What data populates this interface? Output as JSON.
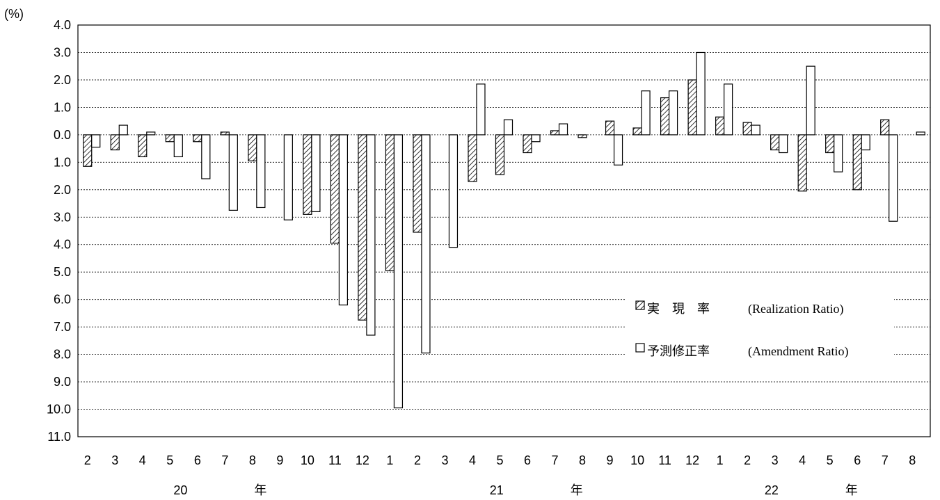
{
  "chart_data": {
    "type": "bar",
    "unit_label": "(%)",
    "ylim": [
      -11.0,
      4.0
    ],
    "y_ticks": [
      {
        "value": 4,
        "label": "4.0"
      },
      {
        "value": 3,
        "label": "3.0"
      },
      {
        "value": 2,
        "label": "2.0"
      },
      {
        "value": 1,
        "label": "1.0"
      },
      {
        "value": 0,
        "label": "0.0"
      },
      {
        "value": -1,
        "label": "1.0"
      },
      {
        "value": -2,
        "label": "2.0"
      },
      {
        "value": -3,
        "label": "3.0"
      },
      {
        "value": -4,
        "label": "4.0"
      },
      {
        "value": -5,
        "label": "5.0"
      },
      {
        "value": -6,
        "label": "6.0"
      },
      {
        "value": -7,
        "label": "7.0"
      },
      {
        "value": -8,
        "label": "8.0"
      },
      {
        "value": -9,
        "label": "9.0"
      },
      {
        "value": -10,
        "label": "10.0"
      },
      {
        "value": -11,
        "label": "11.0"
      }
    ],
    "grid": true,
    "categories": [
      "2",
      "3",
      "4",
      "5",
      "6",
      "7",
      "8",
      "9",
      "10",
      "11",
      "12",
      "1",
      "2",
      "3",
      "4",
      "5",
      "6",
      "7",
      "8",
      "9",
      "10",
      "11",
      "12",
      "1",
      "2",
      "3",
      "4",
      "5",
      "6",
      "7",
      "8"
    ],
    "year_labels": [
      {
        "year": "20",
        "suffix": "年",
        "start_index": 0,
        "end_index": 10
      },
      {
        "year": "21",
        "suffix": "年",
        "start_index": 11,
        "end_index": 22
      },
      {
        "year": "22",
        "suffix": "年",
        "start_index": 23,
        "end_index": 30
      }
    ],
    "series": [
      {
        "name_ja": "実　現　率",
        "name_en": "(Realization Ratio)",
        "style": "hatched",
        "values": [
          -1.15,
          -0.55,
          -0.8,
          -0.25,
          -0.25,
          0.1,
          -0.95,
          null,
          -2.9,
          -3.95,
          -6.75,
          -4.95,
          -3.55,
          null,
          -1.7,
          -1.45,
          -0.65,
          0.15,
          -0.1,
          0.5,
          0.25,
          1.35,
          2.0,
          0.65,
          0.45,
          -0.55,
          -2.05,
          -0.65,
          -2.0,
          0.55,
          null
        ]
      },
      {
        "name_ja": "予測修正率",
        "name_en": "(Amendment Ratio)",
        "style": "open",
        "values": [
          -0.45,
          0.35,
          0.1,
          -0.8,
          -1.6,
          -2.75,
          -2.65,
          -3.1,
          -2.8,
          -6.2,
          -7.3,
          -9.95,
          -7.95,
          -4.1,
          1.85,
          0.55,
          -0.25,
          0.4,
          null,
          -1.1,
          1.6,
          1.6,
          3.0,
          1.85,
          0.35,
          -0.65,
          2.5,
          -1.35,
          -0.55,
          -3.15,
          0.1
        ]
      }
    ],
    "legend_position": "right"
  }
}
